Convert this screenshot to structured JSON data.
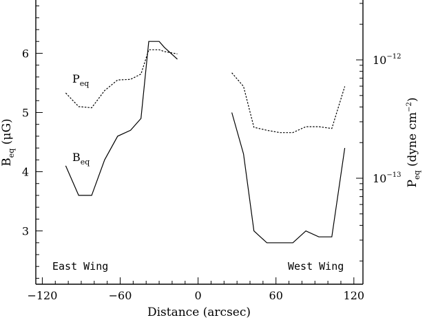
{
  "chart_data": {
    "type": "line",
    "xlabel": "Distance (arcsec)",
    "ylabel_left": "B",
    "ylabel_left_sub": "eq",
    "ylabel_left_unit": "(μG)",
    "ylabel_right": "P",
    "ylabel_right_sub": "eq",
    "ylabel_right_unit": "(dyne cm",
    "ylabel_right_exp": "−2",
    "ylabel_right_close": ")",
    "xlim": [
      -125,
      127
    ],
    "ylim_left": [
      2.1,
      6.9
    ],
    "right_axis_scale": "log",
    "right_axis_ticks": [
      {
        "base": "10",
        "exp": "−12",
        "value": 1e-12
      },
      {
        "base": "10",
        "exp": "−13",
        "value": 1e-13
      }
    ],
    "x_ticks": [
      -120,
      -60,
      0,
      60,
      120
    ],
    "x_tick_labels": [
      "−120",
      "−60",
      "0",
      "60",
      "120"
    ],
    "y_ticks": [
      3,
      4,
      5,
      6
    ],
    "y_tick_labels": [
      "3",
      "4",
      "5",
      "6"
    ],
    "annotations": {
      "east": "East Wing",
      "west": "West Wing"
    },
    "series": [
      {
        "name": "B",
        "name_sub": "eq",
        "style": "solid",
        "segments": [
          {
            "x": [
              -102,
              -92,
              -82,
              -72,
              -62,
              -52,
              -44,
              -38,
              -30,
              -26,
              -16
            ],
            "y": [
              4.1,
              3.6,
              3.6,
              4.2,
              4.6,
              4.7,
              4.9,
              6.2,
              6.2,
              6.1,
              5.9
            ]
          },
          {
            "x": [
              26,
              35,
              43,
              53,
              63,
              73,
              83,
              93,
              103,
              113
            ],
            "y": [
              5.0,
              4.3,
              3.0,
              2.8,
              2.8,
              2.8,
              3.0,
              2.9,
              2.9,
              4.4
            ]
          }
        ]
      },
      {
        "name": "P",
        "name_sub": "eq",
        "style": "dotted",
        "segments": [
          {
            "x": [
              -102,
              -92,
              -82,
              -72,
              -62,
              -52,
              -44,
              -38,
              -30,
              -26,
              -16
            ],
            "y": [
              5.33,
              5.1,
              5.08,
              5.37,
              5.55,
              5.56,
              5.65,
              6.06,
              6.06,
              6.03,
              5.99
            ]
          },
          {
            "x": [
              26,
              35,
              43,
              53,
              63,
              73,
              83,
              93,
              103,
              113
            ],
            "y": [
              5.67,
              5.44,
              4.75,
              4.7,
              4.66,
              4.66,
              4.76,
              4.76,
              4.73,
              5.44
            ]
          }
        ]
      }
    ]
  }
}
